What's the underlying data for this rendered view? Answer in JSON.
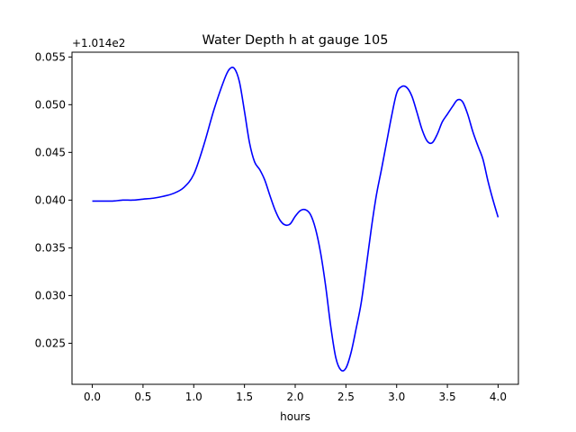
{
  "chart_data": {
    "type": "line",
    "title": "Water Depth h at gauge 105",
    "xlabel": "hours",
    "ylabel": "",
    "offset_text": "+1.014e2",
    "y_offset": 101.4,
    "xlim": [
      -0.2,
      4.2
    ],
    "ylim": [
      0.0207,
      0.0555
    ],
    "x_ticks": [
      0.0,
      0.5,
      1.0,
      1.5,
      2.0,
      2.5,
      3.0,
      3.5,
      4.0
    ],
    "x_tick_labels": [
      "0.0",
      "0.5",
      "1.0",
      "1.5",
      "2.0",
      "2.5",
      "3.0",
      "3.5",
      "4.0"
    ],
    "y_ticks": [
      0.025,
      0.03,
      0.035,
      0.04,
      0.045,
      0.05,
      0.055
    ],
    "y_tick_labels": [
      "0.025",
      "0.030",
      "0.035",
      "0.040",
      "0.045",
      "0.050",
      "0.055"
    ],
    "grid": false,
    "series": [
      {
        "color": "#0000ff",
        "x": [
          0.0,
          0.1,
          0.2,
          0.3,
          0.4,
          0.5,
          0.6,
          0.7,
          0.8,
          0.9,
          1.0,
          1.1,
          1.2,
          1.3,
          1.35,
          1.4,
          1.45,
          1.5,
          1.55,
          1.6,
          1.65,
          1.7,
          1.75,
          1.8,
          1.85,
          1.9,
          1.95,
          2.0,
          2.05,
          2.1,
          2.15,
          2.2,
          2.25,
          2.3,
          2.35,
          2.4,
          2.45,
          2.5,
          2.55,
          2.6,
          2.65,
          2.7,
          2.75,
          2.8,
          2.85,
          2.9,
          2.95,
          3.0,
          3.05,
          3.1,
          3.15,
          3.2,
          3.25,
          3.3,
          3.35,
          3.4,
          3.45,
          3.5,
          3.55,
          3.6,
          3.65,
          3.7,
          3.75,
          3.8,
          3.85,
          3.9,
          3.95,
          4.0
        ],
        "y": [
          0.0399,
          0.0399,
          0.0399,
          0.04,
          0.04,
          0.0401,
          0.0402,
          0.0404,
          0.0407,
          0.0413,
          0.0427,
          0.0458,
          0.0495,
          0.0526,
          0.0537,
          0.0538,
          0.0524,
          0.0493,
          0.046,
          0.044,
          0.0432,
          0.0421,
          0.0405,
          0.039,
          0.0379,
          0.0374,
          0.0375,
          0.0383,
          0.0389,
          0.039,
          0.0385,
          0.037,
          0.0345,
          0.031,
          0.0268,
          0.0235,
          0.0222,
          0.0224,
          0.024,
          0.0265,
          0.0292,
          0.033,
          0.037,
          0.0405,
          0.0432,
          0.046,
          0.0488,
          0.0512,
          0.0519,
          0.0518,
          0.0509,
          0.0492,
          0.0474,
          0.0462,
          0.046,
          0.0469,
          0.0482,
          0.049,
          0.0498,
          0.0505,
          0.0503,
          0.049,
          0.0472,
          0.0457,
          0.0443,
          0.042,
          0.04,
          0.0382
        ]
      }
    ]
  }
}
